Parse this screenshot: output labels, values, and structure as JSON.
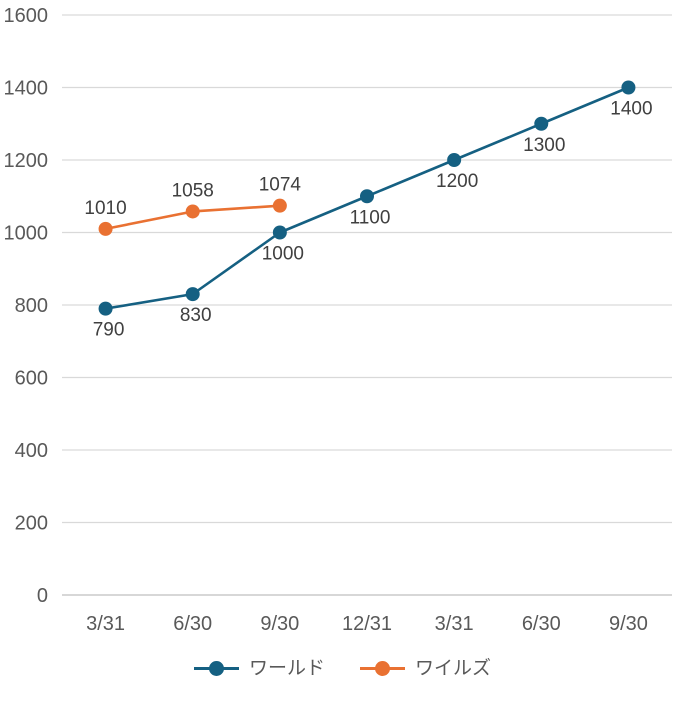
{
  "chart_data": {
    "type": "line",
    "categories": [
      "3/31",
      "6/30",
      "9/30",
      "12/31",
      "3/31",
      "6/30",
      "9/30"
    ],
    "series": [
      {
        "name": "ワールド",
        "color": "#156082",
        "values": [
          790,
          830,
          1000,
          1100,
          1200,
          1300,
          1400
        ],
        "data_label_position": "below"
      },
      {
        "name": "ワイルズ",
        "color": "#E97132",
        "values": [
          1010,
          1058,
          1074
        ],
        "data_label_position": "above"
      }
    ],
    "yticks": [
      0,
      200,
      400,
      600,
      800,
      1000,
      1200,
      1400,
      1600
    ],
    "ylim": [
      0,
      1600
    ],
    "grid": true,
    "legend_position": "bottom"
  },
  "style_colors": {
    "background": "#FFFFFF",
    "gridline": "#D9D9D9",
    "axis_line": "#BFBFBF",
    "tick_label": "#595959",
    "data_label": "#404040"
  }
}
